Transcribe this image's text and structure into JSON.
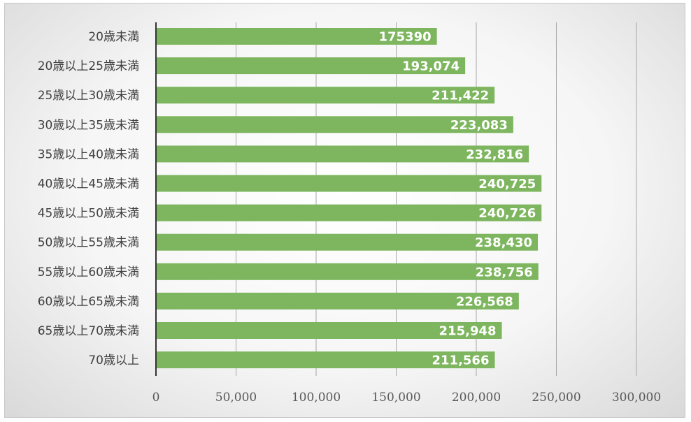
{
  "chart_data": {
    "type": "bar",
    "orientation": "horizontal",
    "categories": [
      "20歳未満",
      "20歳以上25歳未満",
      "25歳以上30歳未満",
      "30歳以上35歳未満",
      "35歳以上40歳未満",
      "40歳以上45歳未満",
      "45歳以上50歳未満",
      "50歳以上55歳未満",
      "55歳以上60歳未満",
      "60歳以上65歳未満",
      "65歳以上70歳未満",
      "70歳以上"
    ],
    "values": [
      175390,
      193074,
      211422,
      223083,
      232816,
      240725,
      240726,
      238430,
      238756,
      226568,
      215948,
      211566
    ],
    "data_labels": [
      "175390",
      "193,074",
      "211,422",
      "223,083",
      "232,816",
      "240,725",
      "240,726",
      "238,430",
      "238,756",
      "226,568",
      "215,948",
      "211,566"
    ],
    "xlim": [
      0,
      300000
    ],
    "x_ticks": [
      0,
      50000,
      100000,
      150000,
      200000,
      250000,
      300000
    ],
    "x_tick_labels": [
      "0",
      "50,000",
      "100,000",
      "150,000",
      "200,000",
      "250,000",
      "300,000"
    ],
    "grid": "vertical",
    "legend": "none",
    "title": "",
    "xlabel": "",
    "ylabel": "",
    "bar_color": "#7db65e",
    "gridline_color": "#a6a6a6",
    "axis_color": "#333333"
  }
}
